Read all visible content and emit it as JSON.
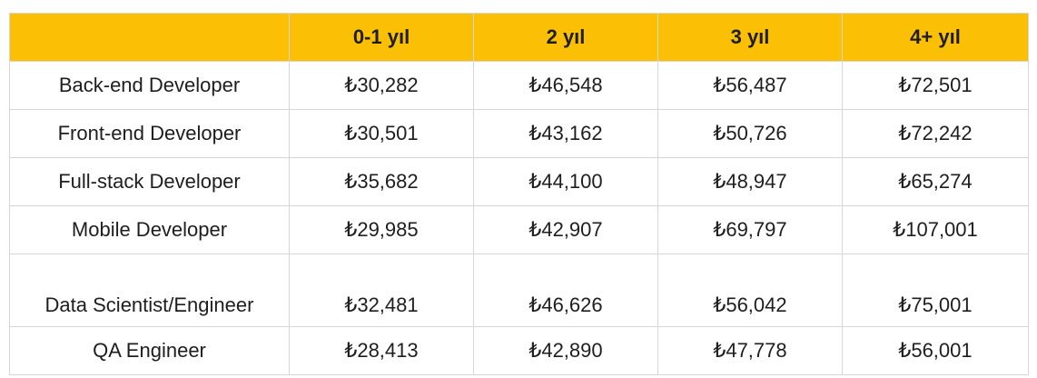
{
  "table": {
    "columns": [
      "0-1 yıl",
      "2 yıl",
      "3 yıl",
      "4+ yıl"
    ],
    "rows": [
      [
        "Back-end Developer",
        "₺30,282",
        "₺46,548",
        "₺56,487",
        "₺72,501"
      ],
      [
        "Front-end Developer",
        "₺30,501",
        "₺43,162",
        "₺50,726",
        "₺72,242"
      ],
      [
        "Full-stack Developer",
        "₺35,682",
        "₺44,100",
        "₺48,947",
        "₺65,274"
      ],
      [
        "Mobile Developer",
        "₺29,985",
        "₺42,907",
        "₺69,797",
        "₺107,001"
      ],
      [
        "Data Scientist/Engineer",
        "₺32,481",
        "₺46,626",
        "₺56,042",
        "₺75,001"
      ],
      [
        "QA Engineer",
        "₺28,413",
        "₺42,890",
        "₺47,778",
        "₺56,001"
      ]
    ]
  }
}
